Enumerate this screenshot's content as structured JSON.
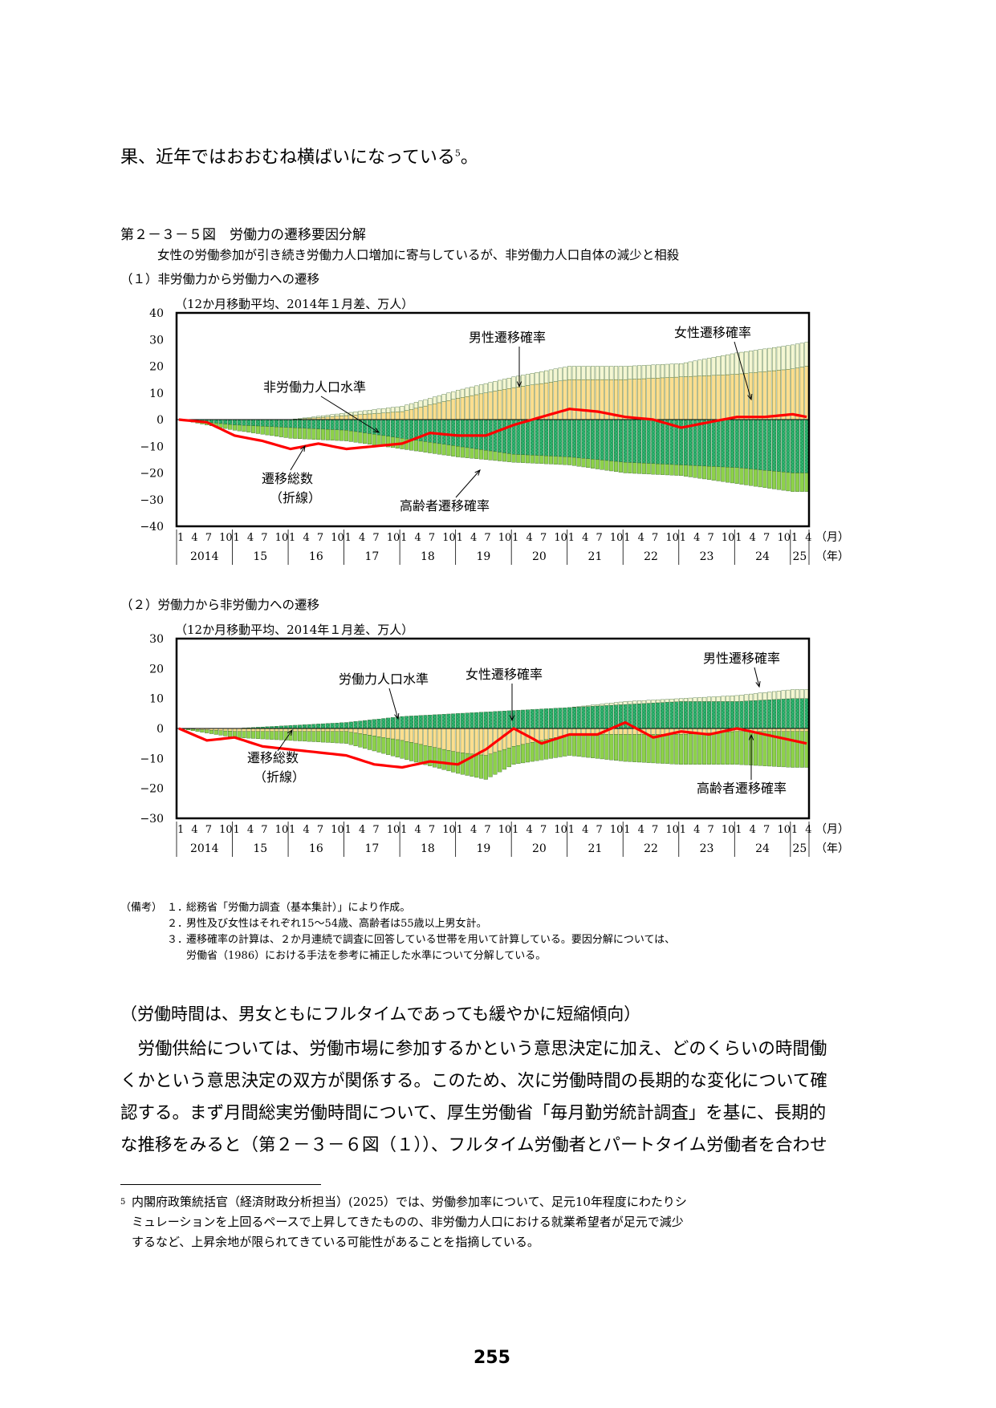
{
  "lead_text": "果、近年ではおおむね横ばいになっている",
  "lead_sup": "5",
  "lead_end": "。",
  "figure": {
    "title": "第２－３－５図　労働力の遷移要因分解",
    "subtitle": "女性の労働参加が引き続き労働力人口増加に寄与しているが、非労働力人口自体の減少と相殺"
  },
  "colors": {
    "male": "#f4f6d2",
    "female": "#fbde8e",
    "level": "#2fb871",
    "elderly": "#8dd14a",
    "total": "#ff0000"
  },
  "x_axis": {
    "month_ticks": [
      "1",
      "4",
      "7",
      "10"
    ],
    "years": [
      "2014",
      "15",
      "16",
      "17",
      "18",
      "19",
      "20",
      "21",
      "22",
      "23",
      "24",
      "25"
    ],
    "last_year_months": [
      "1",
      "4"
    ],
    "month_unit": "（月）",
    "year_unit": "（年）"
  },
  "chart_data": [
    {
      "type": "bar",
      "panel_label": "（１）非労働力から労働力への遷移",
      "unit_note": "（12か月移動平均、2014年１月差、万人）",
      "ylim": [
        -40,
        40
      ],
      "yticks": [
        "40",
        "30",
        "20",
        "10",
        "0",
        "-10",
        "-20",
        "-30",
        "-40"
      ],
      "annotations": {
        "male": "男性遷移確率",
        "female": "女性遷移確率",
        "level": "非労働力人口水準",
        "total": "遷移総数",
        "total2": "（折線）",
        "elderly": "高齢者遷移確率"
      },
      "x_start": "2014-01",
      "x_end": "2025-04",
      "series": [
        {
          "name": "男性遷移確率",
          "anchor_months": [
            0,
            24,
            48,
            60,
            72,
            84,
            96,
            108,
            120,
            132,
            135
          ],
          "values": [
            0,
            0,
            2,
            3,
            4,
            5,
            5,
            5,
            8,
            9,
            9
          ]
        },
        {
          "name": "女性遷移確率",
          "anchor_months": [
            0,
            24,
            48,
            60,
            72,
            84,
            96,
            108,
            120,
            132,
            135
          ],
          "values": [
            0,
            0,
            3,
            8,
            12,
            15,
            15,
            16,
            17,
            19,
            20
          ]
        },
        {
          "name": "非労働力人口水準",
          "anchor_months": [
            0,
            12,
            24,
            36,
            48,
            60,
            72,
            84,
            96,
            108,
            120,
            132,
            135
          ],
          "values": [
            0,
            -2,
            -3,
            -4,
            -7,
            -10,
            -13,
            -14,
            -16,
            -17,
            -18,
            -20,
            -20
          ]
        },
        {
          "name": "高齢者遷移確率",
          "anchor_months": [
            0,
            12,
            24,
            36,
            48,
            60,
            72,
            84,
            96,
            108,
            120,
            132,
            135
          ],
          "values": [
            0,
            -2,
            -4,
            -4,
            -4,
            -4,
            -3,
            -3,
            -4,
            -4,
            -6,
            -7,
            -7
          ]
        },
        {
          "name": "遷移総数",
          "anchor_months": [
            0,
            6,
            12,
            18,
            24,
            30,
            36,
            42,
            48,
            54,
            60,
            66,
            72,
            78,
            84,
            90,
            96,
            102,
            108,
            114,
            120,
            126,
            132,
            135
          ],
          "values": [
            0,
            -1,
            -6,
            -8,
            -11,
            -9,
            -11,
            -10,
            -9,
            -5,
            -6,
            -6,
            -2,
            1,
            4,
            3,
            1,
            0,
            -3,
            -1,
            1,
            1,
            2,
            1
          ]
        }
      ]
    },
    {
      "type": "bar",
      "panel_label": "（２）労働力から非労働力への遷移",
      "unit_note": "（12か月移動平均、2014年１月差、万人）",
      "ylim": [
        -30,
        30
      ],
      "yticks": [
        "30",
        "20",
        "10",
        "0",
        "-10",
        "-20",
        "-30"
      ],
      "annotations": {
        "male": "男性遷移確率",
        "female": "女性遷移確率",
        "level": "労働力人口水準",
        "total": "遷移総数",
        "total2": "（折線）",
        "elderly": "高齢者遷移確率"
      },
      "x_start": "2014-01",
      "x_end": "2025-04",
      "series": [
        {
          "name": "男性遷移確率",
          "anchor_months": [
            0,
            48,
            60,
            72,
            84,
            96,
            108,
            120,
            132,
            135
          ],
          "values": [
            0,
            0,
            0,
            0,
            0,
            1,
            1,
            2,
            3,
            3
          ]
        },
        {
          "name": "女性遷移確率",
          "anchor_months": [
            0,
            12,
            24,
            36,
            48,
            60,
            66,
            72,
            84,
            96,
            108,
            120,
            132,
            135
          ],
          "values": [
            0,
            -1,
            -1,
            -1,
            -4,
            -8,
            -9,
            -6,
            -2,
            -2,
            -2,
            -1,
            -1,
            -1
          ]
        },
        {
          "name": "労働力人口水準",
          "anchor_months": [
            0,
            12,
            24,
            36,
            48,
            60,
            72,
            84,
            96,
            108,
            120,
            132,
            135
          ],
          "values": [
            0,
            0,
            1,
            2,
            4,
            5,
            6,
            7,
            8,
            9,
            9,
            10,
            10
          ]
        },
        {
          "name": "高齢者遷移確率",
          "anchor_months": [
            0,
            12,
            24,
            36,
            48,
            60,
            66,
            72,
            84,
            96,
            108,
            120,
            132,
            135
          ],
          "values": [
            0,
            -2,
            -3,
            -4,
            -6,
            -7,
            -8,
            -6,
            -7,
            -9,
            -10,
            -11,
            -12,
            -12
          ]
        },
        {
          "name": "遷移総数",
          "anchor_months": [
            0,
            6,
            12,
            18,
            24,
            30,
            36,
            42,
            48,
            54,
            60,
            66,
            72,
            78,
            84,
            90,
            96,
            102,
            108,
            114,
            120,
            126,
            132,
            135
          ],
          "values": [
            0,
            -4,
            -3,
            -6,
            -7,
            -8,
            -9,
            -12,
            -13,
            -11,
            -12,
            -7,
            0,
            -5,
            -2,
            -2,
            2,
            -3,
            -1,
            -2,
            0,
            -2,
            -4,
            -5
          ]
        }
      ]
    }
  ],
  "notes": {
    "head": "（備考）",
    "items": [
      {
        "num": "１．",
        "text": "総務省「労働力調査（基本集計）」により作成。"
      },
      {
        "num": "２．",
        "text": "男性及び女性はそれぞれ15～54歳、高齢者は55歳以上男女計。"
      },
      {
        "num": "３．",
        "text": "遷移確率の計算は、２か月連続で調査に回答している世帯を用いて計算している。要因分解については、"
      },
      {
        "num": "",
        "text": "労働省（1986）における手法を参考に補正した水準について分解している。"
      }
    ]
  },
  "heading": "（労働時間は、男女ともにフルタイムであっても緩やかに短縮傾向）",
  "paragraph_lines": [
    "　労働供給については、労働市場に参加するかという意思決定に加え、どのくらいの時間働",
    "くかという意思決定の双方が関係する。このため、次に労働時間の長期的な変化について確",
    "認する。まず月間総実労働時間について、厚生労働省「毎月勤労統計調査」を基に、長期的",
    "な推移をみると（第２－３－６図（１））、フルタイム労働者とパートタイム労働者を合わせ"
  ],
  "footnote": {
    "mark": "5",
    "lines": [
      "内閣府政策統括官（経済財政分析担当）(2025）では、労働参加率について、足元10年程度にわたりシ",
      "ミュレーションを上回るペースで上昇してきたものの、非労働力人口における就業希望者が足元で減少",
      "するなど、上昇余地が限られてきている可能性があることを指摘している。"
    ]
  },
  "page_number": "255"
}
